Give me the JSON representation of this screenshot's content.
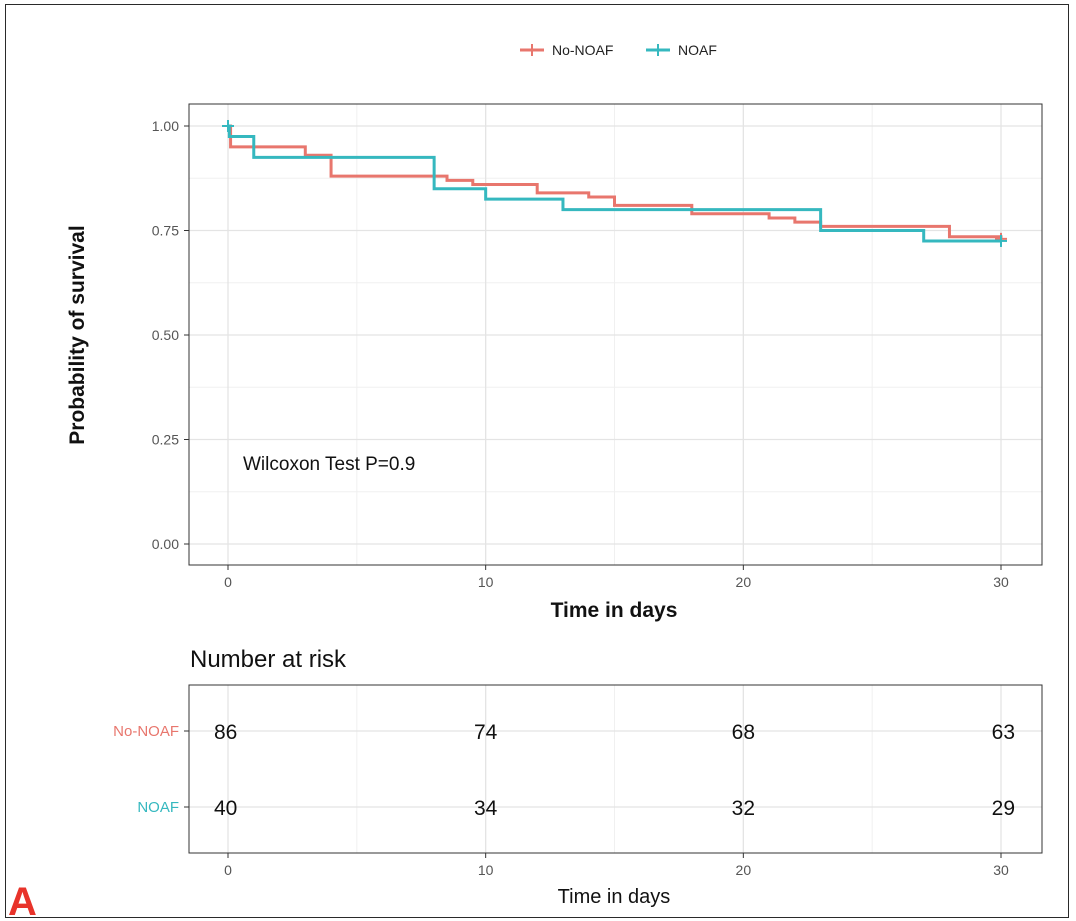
{
  "panel_label": "A",
  "chart_data": [
    {
      "type": "line",
      "subtype": "kaplan-meier-step",
      "xlabel": "Time in days",
      "ylabel": "Probability of survival",
      "xlim": [
        0,
        30
      ],
      "ylim": [
        0,
        1
      ],
      "x_ticks": [
        0,
        10,
        20,
        30
      ],
      "y_ticks": [
        0.0,
        0.25,
        0.5,
        0.75,
        1.0
      ],
      "y_tick_labels": [
        "0.00",
        "0.25",
        "0.50",
        "0.75",
        "1.00"
      ],
      "grid": true,
      "legend_position": "top",
      "annotation": "Wilcoxon Test P=0.9",
      "series": [
        {
          "name": "No-NOAF",
          "color": "#e8766d",
          "x": [
            0,
            0.1,
            3,
            4,
            8.5,
            9.5,
            12,
            14,
            15,
            18,
            21,
            22,
            23,
            28,
            30
          ],
          "y": [
            1.0,
            0.95,
            0.93,
            0.88,
            0.87,
            0.86,
            0.84,
            0.83,
            0.81,
            0.79,
            0.78,
            0.77,
            0.76,
            0.735,
            0.73
          ]
        },
        {
          "name": "NOAF",
          "color": "#35b8bf",
          "x": [
            0,
            0.05,
            1,
            8,
            10,
            13,
            23,
            27,
            30
          ],
          "y": [
            1.0,
            0.975,
            0.925,
            0.85,
            0.825,
            0.8,
            0.75,
            0.725,
            0.725
          ]
        }
      ]
    },
    {
      "type": "table",
      "title": "Number at risk",
      "xlabel": "Time in days",
      "x_ticks": [
        0,
        10,
        20,
        30
      ],
      "rows": [
        {
          "name": "No-NOAF",
          "color": "#e8766d",
          "values": [
            "86",
            "74",
            "68",
            "63"
          ]
        },
        {
          "name": "NOAF",
          "color": "#35b8bf",
          "values": [
            "40",
            "34",
            "32",
            "29"
          ]
        }
      ]
    }
  ]
}
